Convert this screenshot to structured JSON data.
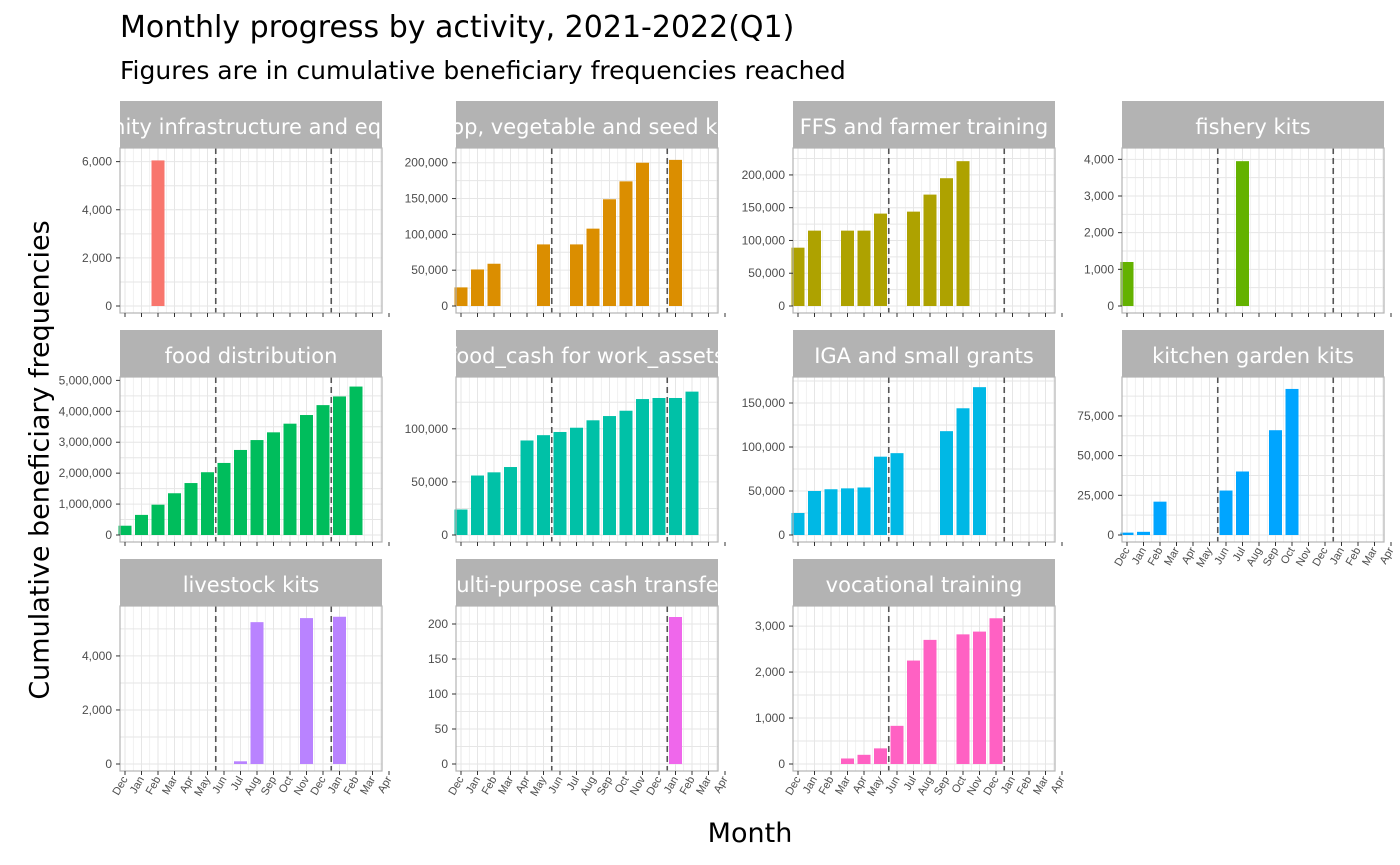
{
  "chart_data": {
    "type": "bar",
    "title": "Monthly progress by activity, 2021-2022(Q1)",
    "subtitle": "Figures are in cumulative beneficiary frequencies reached",
    "xlabel": "Month",
    "ylabel": "Cumulative beneficiary frequencies",
    "x_ticks": [
      "Dec",
      "Jan",
      "Feb",
      "Mar",
      "Apr",
      "May",
      "Jun",
      "Jul",
      "Aug",
      "Sep",
      "Oct",
      "Nov",
      "Dec",
      "Jan",
      "Feb",
      "Mar",
      "Apr"
    ],
    "vlines_dashed": [
      "2021-05-15",
      "2021-12-15"
    ],
    "panels": [
      {
        "label": "community infrastructure and equipment",
        "color": "#F8766D",
        "ylim": [
          0,
          6400
        ],
        "yticks": [
          0,
          2000,
          4000,
          6000
        ],
        "ytick_labels": [
          "0",
          "2,000",
          "4,000",
          "6,000"
        ],
        "points": [
          {
            "x": "2021-02",
            "y": 6050
          }
        ]
      },
      {
        "label": "crop, vegetable and seed kits",
        "color": "#DB8E00",
        "ylim": [
          0,
          215000
        ],
        "yticks": [
          0,
          50000,
          100000,
          150000,
          200000
        ],
        "ytick_labels": [
          "0",
          "50,000",
          "100,000",
          "150,000",
          "200,000"
        ],
        "points": [
          {
            "x": "2020-12",
            "y": 26000
          },
          {
            "x": "2021-01",
            "y": 51000
          },
          {
            "x": "2021-02",
            "y": 59000
          },
          {
            "x": "2021-05",
            "y": 86000
          },
          {
            "x": "2021-07",
            "y": 86000
          },
          {
            "x": "2021-08",
            "y": 108000
          },
          {
            "x": "2021-09",
            "y": 149000
          },
          {
            "x": "2021-10",
            "y": 174000
          },
          {
            "x": "2021-11",
            "y": 200000
          },
          {
            "x": "2022-01",
            "y": 204000
          }
        ]
      },
      {
        "label": "FFS and farmer training",
        "color": "#AEA200",
        "ylim": [
          0,
          235000
        ],
        "yticks": [
          0,
          50000,
          100000,
          150000,
          200000
        ],
        "ytick_labels": [
          "0",
          "50,000",
          "100,000",
          "150,000",
          "200,000"
        ],
        "points": [
          {
            "x": "2020-12",
            "y": 89000
          },
          {
            "x": "2021-01",
            "y": 115000
          },
          {
            "x": "2021-03",
            "y": 115000
          },
          {
            "x": "2021-04",
            "y": 115000
          },
          {
            "x": "2021-05",
            "y": 141000
          },
          {
            "x": "2021-07",
            "y": 144000
          },
          {
            "x": "2021-08",
            "y": 170000
          },
          {
            "x": "2021-09",
            "y": 195000
          },
          {
            "x": "2021-10",
            "y": 221000
          }
        ]
      },
      {
        "label": "fishery kits",
        "color": "#64B200",
        "ylim": [
          0,
          4200
        ],
        "yticks": [
          0,
          1000,
          2000,
          3000,
          4000
        ],
        "ytick_labels": [
          "0",
          "1,000",
          "2,000",
          "3,000",
          "4,000"
        ],
        "points": [
          {
            "x": "2020-12",
            "y": 1200
          },
          {
            "x": "2021-07",
            "y": 3950
          }
        ]
      },
      {
        "label": "food distribution",
        "color": "#00BD5C",
        "ylim": [
          0,
          4980000
        ],
        "yticks": [
          0,
          1000000,
          2000000,
          3000000,
          4000000,
          5000000
        ],
        "ytick_labels": [
          "0",
          "1,000,000",
          "2,000,000",
          "3,000,000",
          "4,000,000",
          "5,000,000"
        ],
        "points": [
          {
            "x": "2020-12",
            "y": 300000
          },
          {
            "x": "2021-01",
            "y": 650000
          },
          {
            "x": "2021-02",
            "y": 980000
          },
          {
            "x": "2021-03",
            "y": 1350000
          },
          {
            "x": "2021-04",
            "y": 1680000
          },
          {
            "x": "2021-05",
            "y": 2030000
          },
          {
            "x": "2021-06",
            "y": 2330000
          },
          {
            "x": "2021-07",
            "y": 2750000
          },
          {
            "x": "2021-08",
            "y": 3070000
          },
          {
            "x": "2021-09",
            "y": 3320000
          },
          {
            "x": "2021-10",
            "y": 3600000
          },
          {
            "x": "2021-11",
            "y": 3880000
          },
          {
            "x": "2021-12",
            "y": 4200000
          },
          {
            "x": "2022-01",
            "y": 4480000
          },
          {
            "x": "2022-02",
            "y": 4800000
          }
        ]
      },
      {
        "label": "food_cash for work_assets",
        "color": "#00C1A7",
        "ylim": [
          0,
          145000
        ],
        "yticks": [
          0,
          50000,
          100000
        ],
        "ytick_labels": [
          "0",
          "50,000",
          "100,000"
        ],
        "points": [
          {
            "x": "2020-12",
            "y": 24000
          },
          {
            "x": "2021-01",
            "y": 56000
          },
          {
            "x": "2021-02",
            "y": 59000
          },
          {
            "x": "2021-03",
            "y": 64000
          },
          {
            "x": "2021-04",
            "y": 89000
          },
          {
            "x": "2021-05",
            "y": 94000
          },
          {
            "x": "2021-06",
            "y": 97000
          },
          {
            "x": "2021-07",
            "y": 101000
          },
          {
            "x": "2021-08",
            "y": 108000
          },
          {
            "x": "2021-09",
            "y": 112000
          },
          {
            "x": "2021-10",
            "y": 117000
          },
          {
            "x": "2021-11",
            "y": 128000
          },
          {
            "x": "2021-12",
            "y": 129000
          },
          {
            "x": "2022-01",
            "y": 129000
          },
          {
            "x": "2022-02",
            "y": 135000
          }
        ]
      },
      {
        "label": "IGA and small grants",
        "color": "#00B8E5",
        "ylim": [
          0,
          175000
        ],
        "yticks": [
          0,
          50000,
          100000,
          150000
        ],
        "ytick_labels": [
          "0",
          "50,000",
          "100,000",
          "150,000"
        ],
        "points": [
          {
            "x": "2020-12",
            "y": 25000
          },
          {
            "x": "2021-01",
            "y": 50000
          },
          {
            "x": "2021-02",
            "y": 52000
          },
          {
            "x": "2021-03",
            "y": 53000
          },
          {
            "x": "2021-04",
            "y": 54000
          },
          {
            "x": "2021-05",
            "y": 89000
          },
          {
            "x": "2021-06",
            "y": 93000
          },
          {
            "x": "2021-09",
            "y": 118000
          },
          {
            "x": "2021-10",
            "y": 144000
          },
          {
            "x": "2021-11",
            "y": 168000
          }
        ]
      },
      {
        "label": "kitchen garden kits",
        "color": "#00A5FF",
        "ylim": [
          0,
          97000
        ],
        "yticks": [
          0,
          25000,
          50000,
          75000
        ],
        "ytick_labels": [
          "0",
          "25,000",
          "50,000",
          "75,000"
        ],
        "points": [
          {
            "x": "2020-12",
            "y": 1500
          },
          {
            "x": "2021-01",
            "y": 2000
          },
          {
            "x": "2021-02",
            "y": 21000
          },
          {
            "x": "2021-06",
            "y": 28000
          },
          {
            "x": "2021-07",
            "y": 40000
          },
          {
            "x": "2021-09",
            "y": 66000
          },
          {
            "x": "2021-10",
            "y": 92000
          }
        ]
      },
      {
        "label": "livestock kits",
        "color": "#B983FF",
        "ylim": [
          0,
          5700
        ],
        "yticks": [
          0,
          2000,
          4000
        ],
        "ytick_labels": [
          "0",
          "2,000",
          "4,000"
        ],
        "points": [
          {
            "x": "2021-07",
            "y": 100
          },
          {
            "x": "2021-08",
            "y": 5250
          },
          {
            "x": "2021-11",
            "y": 5400
          },
          {
            "x": "2022-01",
            "y": 5450
          }
        ]
      },
      {
        "label": "multi-purpose cash transfers",
        "color": "#EF67EB",
        "ylim": [
          0,
          220
        ],
        "yticks": [
          0,
          50,
          100,
          150,
          200
        ],
        "ytick_labels": [
          "0",
          "50",
          "100",
          "150",
          "200"
        ],
        "points": [
          {
            "x": "2022-01",
            "y": 210
          }
        ]
      },
      {
        "label": "vocational training",
        "color": "#FF61C3",
        "ylim": [
          0,
          3350
        ],
        "yticks": [
          0,
          1000,
          2000,
          3000
        ],
        "ytick_labels": [
          "0",
          "1,000",
          "2,000",
          "3,000"
        ],
        "points": [
          {
            "x": "2021-03",
            "y": 120
          },
          {
            "x": "2021-04",
            "y": 200
          },
          {
            "x": "2021-05",
            "y": 340
          },
          {
            "x": "2021-06",
            "y": 830
          },
          {
            "x": "2021-07",
            "y": 2250
          },
          {
            "x": "2021-08",
            "y": 2700
          },
          {
            "x": "2021-10",
            "y": 2820
          },
          {
            "x": "2021-11",
            "y": 2880
          },
          {
            "x": "2021-12",
            "y": 3170
          }
        ]
      }
    ]
  }
}
